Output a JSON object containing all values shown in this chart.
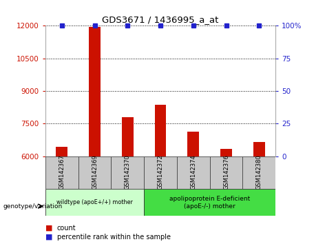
{
  "title": "GDS3671 / 1436995_a_at",
  "categories": [
    "GSM142367",
    "GSM142369",
    "GSM142370",
    "GSM142372",
    "GSM142374",
    "GSM142376",
    "GSM142380"
  ],
  "bar_values": [
    6420,
    11950,
    7780,
    8370,
    7120,
    6350,
    6640
  ],
  "percentile_values": [
    100,
    100,
    100,
    100,
    100,
    100,
    100
  ],
  "ylim_left": [
    6000,
    12000
  ],
  "ylim_right": [
    0,
    100
  ],
  "yticks_left": [
    6000,
    7500,
    9000,
    10500,
    12000
  ],
  "yticks_right": [
    0,
    25,
    50,
    75,
    100
  ],
  "bar_color": "#cc1100",
  "dot_color": "#2222cc",
  "group1_label": "wildtype (apoE+/+) mother",
  "group2_label": "apolipoprotein E-deficient\n(apoE-/-) mother",
  "group1_indices": [
    0,
    1,
    2
  ],
  "group2_indices": [
    3,
    4,
    5,
    6
  ],
  "group1_color": "#ccffcc",
  "group2_color": "#44dd44",
  "genotype_label": "genotype/variation",
  "legend_count_label": "count",
  "legend_percentile_label": "percentile rank within the sample",
  "bg_color": "#ffffff",
  "axis_color_left": "#cc1100",
  "axis_color_right": "#2222cc",
  "label_bg_color": "#c8c8c8",
  "bar_width": 0.35
}
